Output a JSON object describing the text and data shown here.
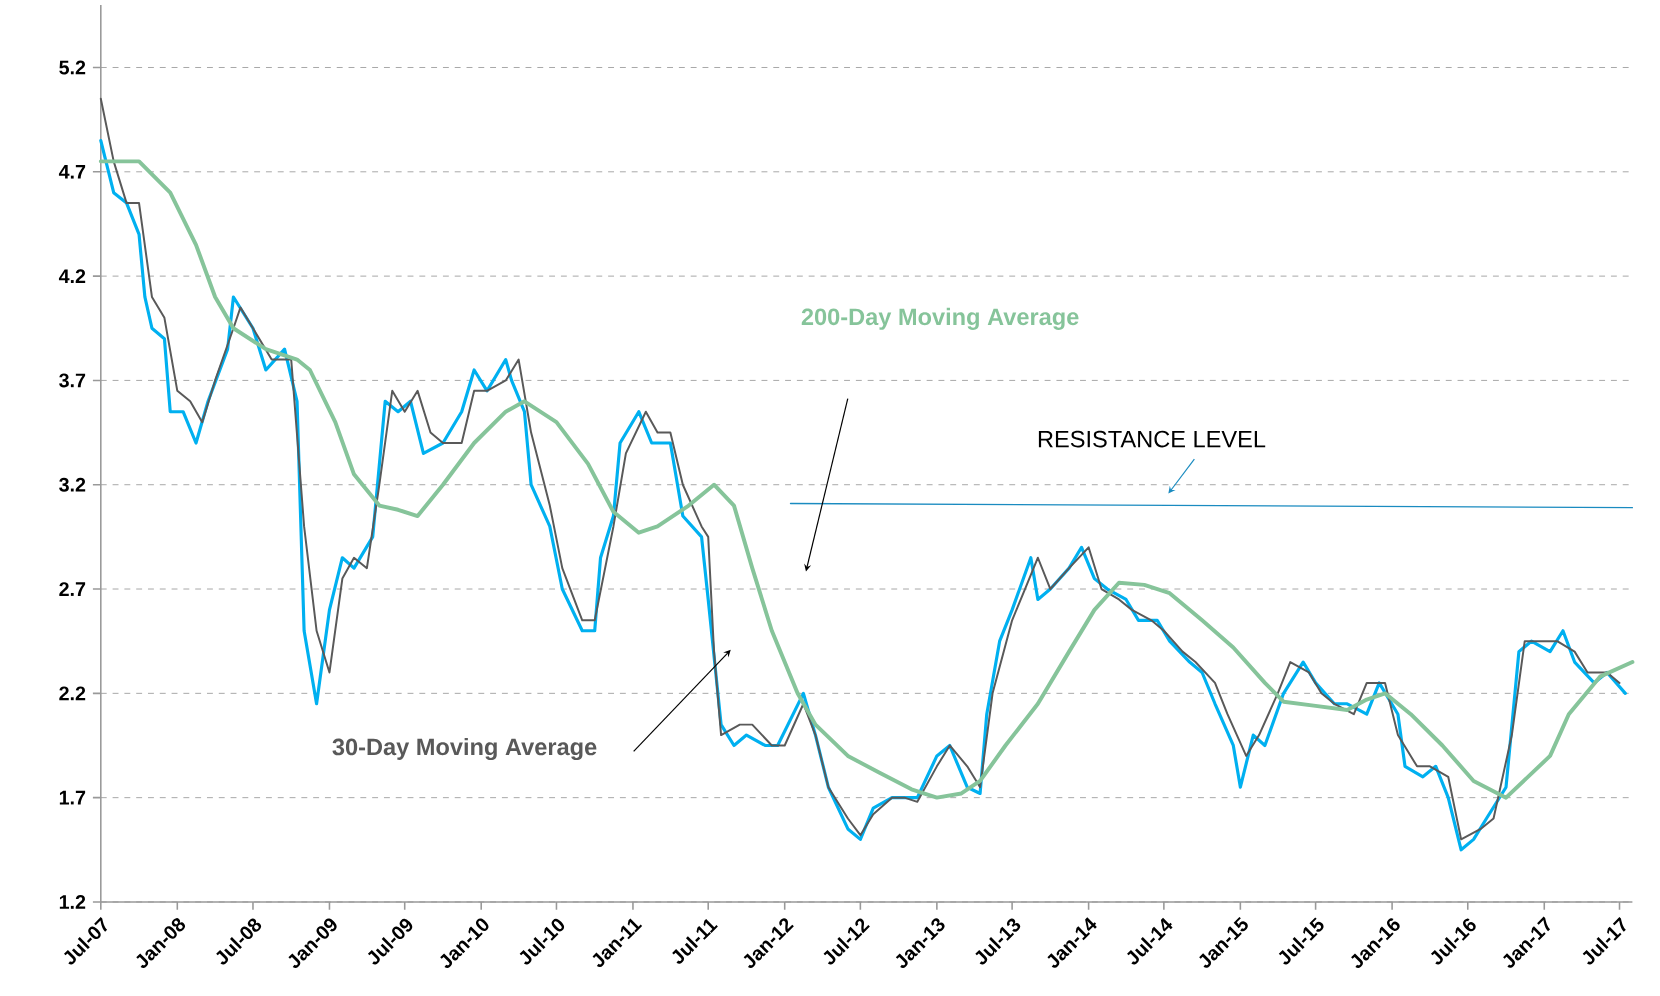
{
  "chart_data": {
    "type": "line",
    "marker": "none",
    "grid": "y",
    "xlim": [
      "2007-07-01",
      "2017-08-01"
    ],
    "ylim": [
      1.2,
      5.5
    ],
    "xticks": [
      {
        "value": "2007-07",
        "label": "Jul-07"
      },
      {
        "value": "2008-01",
        "label": "Jan-08"
      },
      {
        "value": "2008-07",
        "label": "Jul-08"
      },
      {
        "value": "2009-01",
        "label": "Jan-09"
      },
      {
        "value": "2009-07",
        "label": "Jul-09"
      },
      {
        "value": "2010-01",
        "label": "Jan-10"
      },
      {
        "value": "2010-07",
        "label": "Jul-10"
      },
      {
        "value": "2011-01",
        "label": "Jan-11"
      },
      {
        "value": "2011-07",
        "label": "Jul-11"
      },
      {
        "value": "2012-01",
        "label": "Jan-12"
      },
      {
        "value": "2012-07",
        "label": "Jul-12"
      },
      {
        "value": "2013-01",
        "label": "Jan-13"
      },
      {
        "value": "2013-07",
        "label": "Jul-13"
      },
      {
        "value": "2014-01",
        "label": "Jan-14"
      },
      {
        "value": "2014-07",
        "label": "Jul-14"
      },
      {
        "value": "2015-01",
        "label": "Jan-15"
      },
      {
        "value": "2015-07",
        "label": "Jul-15"
      },
      {
        "value": "2016-01",
        "label": "Jan-16"
      },
      {
        "value": "2016-07",
        "label": "Jul-16"
      },
      {
        "value": "2017-01",
        "label": "Jan-17"
      },
      {
        "value": "2017-07",
        "label": "Jul-17"
      }
    ],
    "yticks": [
      1.2,
      1.7,
      2.2,
      2.7,
      3.2,
      3.7,
      4.2,
      4.7,
      5.2
    ],
    "series": [
      {
        "color": "#00b0f0",
        "x": [
          "2007-07-01",
          "2007-08-01",
          "2007-09-01",
          "2007-10-01",
          "2007-10-15",
          "2007-11-01",
          "2007-12-01",
          "2007-12-15",
          "2008-01-15",
          "2008-02-15",
          "2008-03-15",
          "2008-05-01",
          "2008-05-15",
          "2008-07-01",
          "2008-08-01",
          "2008-09-15",
          "2008-10-15",
          "2008-11-01",
          "2008-12-01",
          "2009-01-01",
          "2009-02-01",
          "2009-03-01",
          "2009-04-15",
          "2009-05-15",
          "2009-06-15",
          "2009-07-15",
          "2009-08-15",
          "2009-10-01",
          "2009-11-15",
          "2009-12-15",
          "2010-01-15",
          "2010-03-01",
          "2010-03-15",
          "2010-04-15",
          "2010-05-01",
          "2010-06-15",
          "2010-07-15",
          "2010-09-01",
          "2010-10-01",
          "2010-10-15",
          "2010-11-15",
          "2010-12-01",
          "2011-01-15",
          "2011-02-15",
          "2011-04-01",
          "2011-05-01",
          "2011-06-15",
          "2011-07-01",
          "2011-08-01",
          "2011-09-01",
          "2011-10-01",
          "2011-11-15",
          "2011-12-15",
          "2012-02-15",
          "2012-03-15",
          "2012-04-15",
          "2012-06-01",
          "2012-07-01",
          "2012-08-01",
          "2012-09-15",
          "2012-10-15",
          "2012-11-15",
          "2013-01-01",
          "2013-02-01",
          "2013-03-15",
          "2013-04-15",
          "2013-05-01",
          "2013-06-01",
          "2013-07-01",
          "2013-08-15",
          "2013-09-01",
          "2013-10-01",
          "2013-11-15",
          "2013-12-15",
          "2014-01-15",
          "2014-02-15",
          "2014-04-01",
          "2014-05-01",
          "2014-06-15",
          "2014-07-15",
          "2014-09-01",
          "2014-10-01",
          "2014-11-01",
          "2014-12-15",
          "2015-01-01",
          "2015-02-01",
          "2015-03-01",
          "2015-04-15",
          "2015-06-01",
          "2015-07-01",
          "2015-08-15",
          "2015-09-15",
          "2015-11-01",
          "2015-12-01",
          "2016-01-15",
          "2016-02-01",
          "2016-03-15",
          "2016-04-15",
          "2016-05-15",
          "2016-06-15",
          "2016-07-15",
          "2016-08-15",
          "2016-10-01",
          "2016-11-01",
          "2016-12-01",
          "2017-01-15",
          "2017-02-15",
          "2017-03-15",
          "2017-05-01",
          "2017-06-01",
          "2017-07-15"
        ],
        "values": [
          4.85,
          4.6,
          4.55,
          4.4,
          4.1,
          3.95,
          3.9,
          3.55,
          3.55,
          3.4,
          3.6,
          3.85,
          4.1,
          3.95,
          3.75,
          3.85,
          3.6,
          2.5,
          2.15,
          2.6,
          2.85,
          2.8,
          2.95,
          3.6,
          3.55,
          3.6,
          3.35,
          3.4,
          3.55,
          3.75,
          3.65,
          3.8,
          3.7,
          3.55,
          3.2,
          3.0,
          2.7,
          2.5,
          2.5,
          2.85,
          3.05,
          3.4,
          3.55,
          3.4,
          3.4,
          3.05,
          2.95,
          2.65,
          2.05,
          1.95,
          2.0,
          1.95,
          1.95,
          2.2,
          2.0,
          1.75,
          1.55,
          1.5,
          1.65,
          1.7,
          1.7,
          1.7,
          1.9,
          1.95,
          1.75,
          1.72,
          2.1,
          2.45,
          2.6,
          2.85,
          2.65,
          2.7,
          2.8,
          2.9,
          2.75,
          2.7,
          2.65,
          2.55,
          2.55,
          2.45,
          2.35,
          2.3,
          2.15,
          1.95,
          1.75,
          2.0,
          1.95,
          2.2,
          2.35,
          2.25,
          2.15,
          2.15,
          2.1,
          2.25,
          2.1,
          1.85,
          1.8,
          1.85,
          1.7,
          1.45,
          1.5,
          1.6,
          1.75,
          2.4,
          2.45,
          2.4,
          2.5,
          2.35,
          2.25,
          2.3,
          2.2
        ]
      },
      {
        "name": "30-Day Moving Average",
        "color": "#595959",
        "x": [
          "2007-07-01",
          "2007-08-01",
          "2007-09-01",
          "2007-10-01",
          "2007-11-01",
          "2007-12-01",
          "2008-01-01",
          "2008-02-01",
          "2008-03-01",
          "2008-04-01",
          "2008-05-15",
          "2008-06-01",
          "2008-07-01",
          "2008-08-15",
          "2008-10-01",
          "2008-11-01",
          "2008-12-01",
          "2009-01-01",
          "2009-02-01",
          "2009-03-01",
          "2009-04-01",
          "2009-05-01",
          "2009-06-01",
          "2009-07-01",
          "2009-08-01",
          "2009-09-01",
          "2009-10-01",
          "2009-11-15",
          "2009-12-15",
          "2010-01-15",
          "2010-03-01",
          "2010-04-01",
          "2010-05-01",
          "2010-06-15",
          "2010-07-15",
          "2010-09-01",
          "2010-10-01",
          "2010-11-15",
          "2010-12-15",
          "2011-02-01",
          "2011-03-01",
          "2011-04-01",
          "2011-05-01",
          "2011-06-15",
          "2011-07-01",
          "2011-07-15",
          "2011-08-01",
          "2011-09-15",
          "2011-10-15",
          "2011-12-01",
          "2012-01-01",
          "2012-02-15",
          "2012-03-15",
          "2012-04-15",
          "2012-06-01",
          "2012-07-01",
          "2012-08-01",
          "2012-09-15",
          "2012-10-15",
          "2012-11-15",
          "2013-01-01",
          "2013-02-01",
          "2013-03-15",
          "2013-04-15",
          "2013-05-15",
          "2013-07-01",
          "2013-08-01",
          "2013-09-01",
          "2013-10-01",
          "2013-11-15",
          "2014-01-01",
          "2014-02-01",
          "2014-03-15",
          "2014-04-15",
          "2014-06-01",
          "2014-07-01",
          "2014-08-15",
          "2014-09-15",
          "2014-11-01",
          "2014-12-01",
          "2015-01-15",
          "2015-02-15",
          "2015-04-01",
          "2015-05-01",
          "2015-06-15",
          "2015-07-15",
          "2015-08-15",
          "2015-10-01",
          "2015-11-01",
          "2015-12-15",
          "2016-01-15",
          "2016-03-01",
          "2016-04-01",
          "2016-05-15",
          "2016-06-15",
          "2016-08-01",
          "2016-09-01",
          "2016-10-15",
          "2016-11-15",
          "2017-01-01",
          "2017-02-01",
          "2017-03-15",
          "2017-04-15",
          "2017-06-01",
          "2017-07-01"
        ],
        "values": [
          5.05,
          4.75,
          4.55,
          4.55,
          4.1,
          4.0,
          3.65,
          3.6,
          3.5,
          3.7,
          3.95,
          4.05,
          3.95,
          3.8,
          3.8,
          3.0,
          2.5,
          2.3,
          2.75,
          2.85,
          2.8,
          3.2,
          3.65,
          3.55,
          3.65,
          3.45,
          3.4,
          3.4,
          3.65,
          3.65,
          3.7,
          3.8,
          3.45,
          3.1,
          2.8,
          2.55,
          2.55,
          3.0,
          3.35,
          3.55,
          3.45,
          3.45,
          3.2,
          3.0,
          2.95,
          2.4,
          2.0,
          2.05,
          2.05,
          1.95,
          1.95,
          2.15,
          2.0,
          1.75,
          1.6,
          1.52,
          1.62,
          1.7,
          1.7,
          1.68,
          1.85,
          1.95,
          1.85,
          1.75,
          2.2,
          2.55,
          2.7,
          2.85,
          2.7,
          2.8,
          2.9,
          2.7,
          2.65,
          2.6,
          2.55,
          2.5,
          2.4,
          2.35,
          2.25,
          2.1,
          1.9,
          2.0,
          2.2,
          2.35,
          2.3,
          2.2,
          2.15,
          2.1,
          2.25,
          2.25,
          2.0,
          1.85,
          1.85,
          1.8,
          1.5,
          1.55,
          1.6,
          2.0,
          2.45,
          2.45,
          2.45,
          2.4,
          2.3,
          2.3,
          2.25
        ]
      },
      {
        "name": "200-Day Moving Average",
        "color": "#86c49a",
        "x": [
          "2007-07-01",
          "2007-10-01",
          "2007-12-15",
          "2008-02-15",
          "2008-04-01",
          "2008-05-15",
          "2008-08-01",
          "2008-10-15",
          "2008-11-15",
          "2009-01-15",
          "2009-03-01",
          "2009-05-01",
          "2009-06-15",
          "2009-08-01",
          "2009-10-01",
          "2009-12-15",
          "2010-03-01",
          "2010-04-15",
          "2010-07-01",
          "2010-09-15",
          "2010-11-15",
          "2011-01-15",
          "2011-03-01",
          "2011-05-15",
          "2011-07-15",
          "2011-09-01",
          "2011-10-15",
          "2011-12-01",
          "2012-02-01",
          "2012-03-15",
          "2012-06-01",
          "2012-08-15",
          "2012-11-01",
          "2013-01-01",
          "2013-03-01",
          "2013-04-15",
          "2013-06-15",
          "2013-09-01",
          "2013-11-15",
          "2014-01-15",
          "2014-03-15",
          "2014-05-15",
          "2014-07-15",
          "2014-10-01",
          "2014-12-15",
          "2015-03-01",
          "2015-04-15",
          "2015-07-01",
          "2015-09-15",
          "2015-11-01",
          "2015-12-15",
          "2016-02-15",
          "2016-05-01",
          "2016-07-15",
          "2016-10-01",
          "2017-01-15",
          "2017-03-01",
          "2017-05-15",
          "2017-08-01"
        ],
        "values": [
          4.75,
          4.75,
          4.6,
          4.35,
          4.1,
          3.95,
          3.85,
          3.8,
          3.75,
          3.5,
          3.25,
          3.1,
          3.08,
          3.05,
          3.2,
          3.4,
          3.55,
          3.6,
          3.5,
          3.3,
          3.07,
          2.97,
          3.0,
          3.1,
          3.2,
          3.1,
          2.8,
          2.5,
          2.2,
          2.05,
          1.9,
          1.82,
          1.74,
          1.7,
          1.72,
          1.78,
          1.95,
          2.15,
          2.4,
          2.6,
          2.73,
          2.72,
          2.68,
          2.55,
          2.42,
          2.25,
          2.16,
          2.14,
          2.12,
          2.17,
          2.2,
          2.1,
          1.95,
          1.78,
          1.7,
          1.9,
          2.1,
          2.28,
          2.35
        ]
      },
      {
        "name": "RESISTANCE LEVEL",
        "color": "#1a8bc0",
        "x": [
          "2012-01-15",
          "2017-08-01"
        ],
        "values": [
          3.11,
          3.09
        ]
      }
    ]
  }
}
